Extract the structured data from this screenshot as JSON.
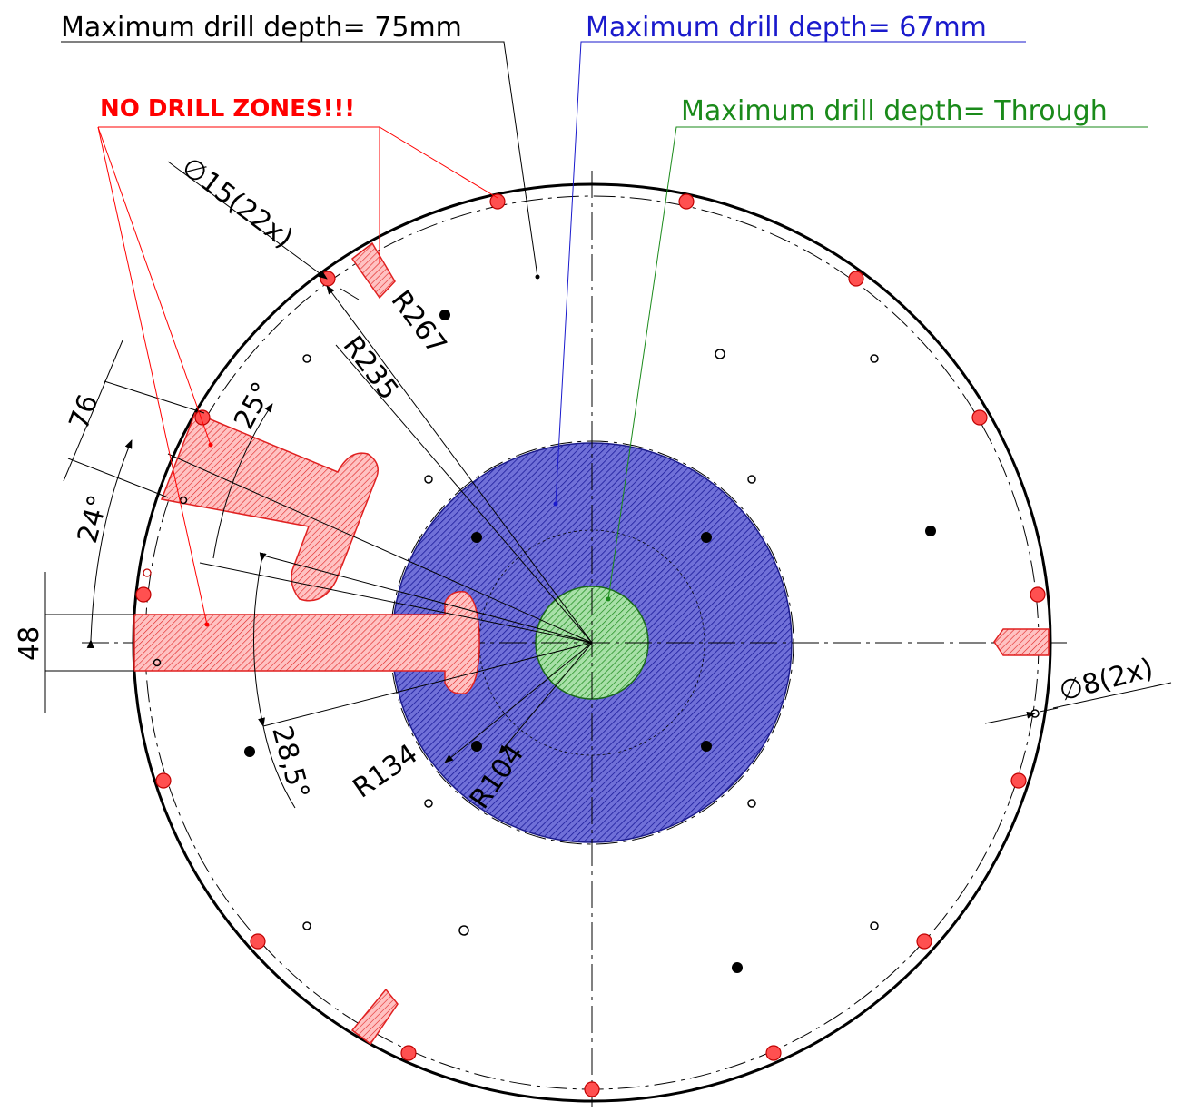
{
  "labels": {
    "depth_75": "Maximum drill depth= 75mm",
    "depth_67": "Maximum drill depth= 67mm",
    "depth_through": "Maximum drill depth= Through",
    "no_drill": "NO DRILL ZONES!!!",
    "hole_15": "∅15(22x)",
    "hole_8": "∅8(2x)",
    "r267": "R267",
    "r235": "R235",
    "r134": "R134",
    "r104": "R104",
    "dim_76": "76",
    "dim_48": "48",
    "ang_24": "24°",
    "ang_25": "25°",
    "ang_28_5": "28,5°"
  },
  "colors": {
    "black": "#000000",
    "blue": "#1a1acc",
    "blue_fill": "#3a3aa8",
    "green": "#1a8a1a",
    "green_fill": "#7fc77f",
    "red": "#ff0000",
    "red_fill": "#ff9a9a"
  }
}
